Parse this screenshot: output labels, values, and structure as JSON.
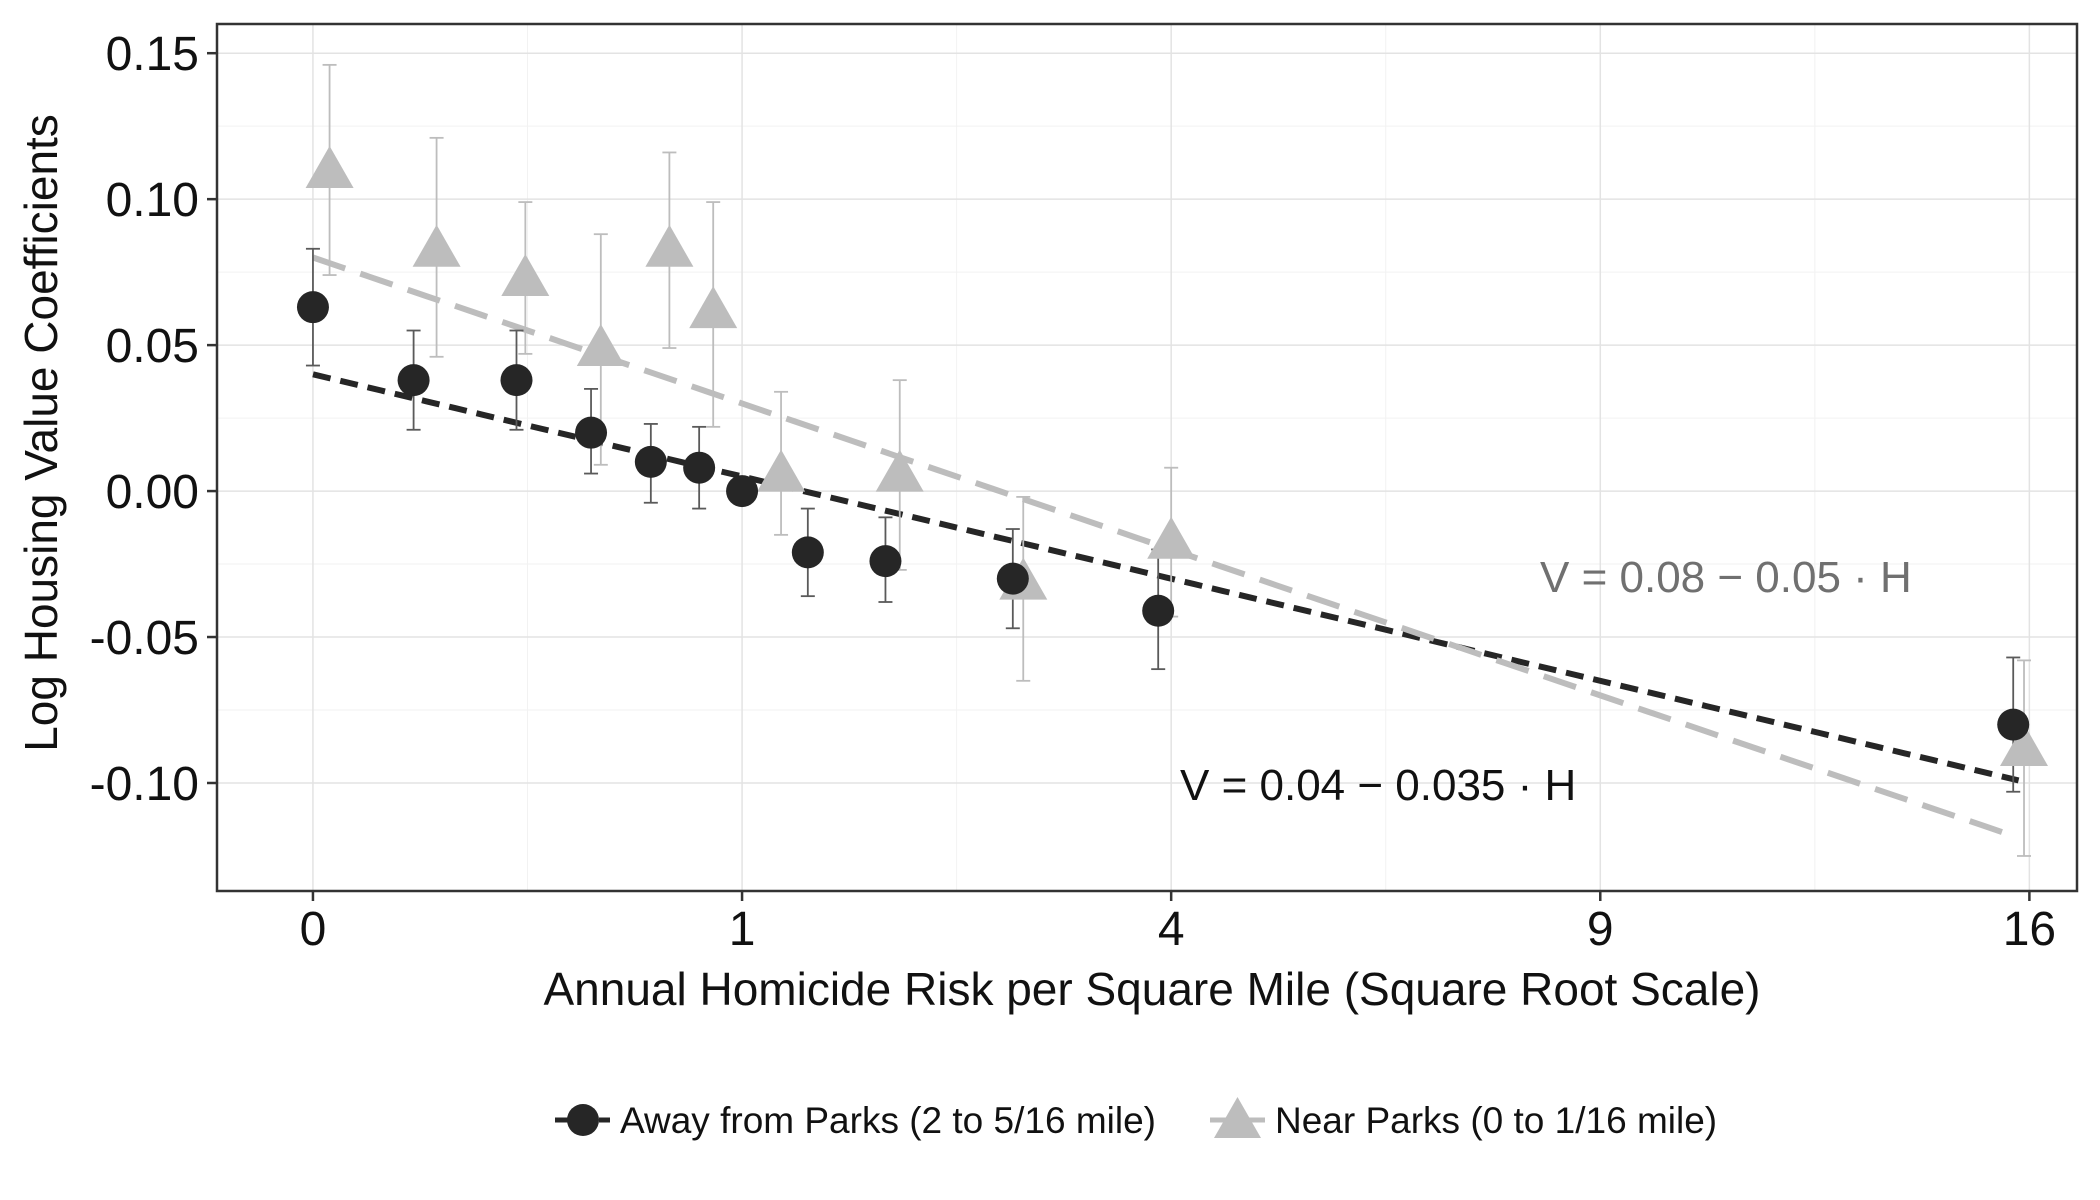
{
  "chart_data": {
    "type": "scatter",
    "title": "",
    "xlabel": "Annual Homicide Risk per Square Mile (Square Root Scale)",
    "ylabel": "Log Housing Value Coefficients",
    "x_scale": "sqrt",
    "xlim": [
      -0.05,
      16.9
    ],
    "ylim": [
      -0.137,
      0.16
    ],
    "x_ticks": [
      0,
      1,
      4,
      9,
      16
    ],
    "x_tick_labels": [
      "0",
      "1",
      "4",
      "9",
      "16"
    ],
    "y_ticks": [
      0.15,
      0.1,
      0.05,
      0.0,
      -0.05,
      -0.1
    ],
    "y_tick_labels": [
      "0.15",
      "0.10",
      "0.05",
      "0.00",
      "-0.05",
      "-0.10"
    ],
    "grid": true,
    "legend_position": "bottom",
    "series": [
      {
        "name": "Away from Parks (2 to 5/16 mile)",
        "marker": "circle",
        "color": "#262626",
        "points": [
          {
            "x": 0.0,
            "y": 0.063,
            "lo": 0.043,
            "hi": 0.083
          },
          {
            "x": 0.055,
            "y": 0.038,
            "lo": 0.021,
            "hi": 0.055
          },
          {
            "x": 0.225,
            "y": 0.038,
            "lo": 0.021,
            "hi": 0.055
          },
          {
            "x": 0.42,
            "y": 0.02,
            "lo": 0.006,
            "hi": 0.035
          },
          {
            "x": 0.62,
            "y": 0.01,
            "lo": -0.004,
            "hi": 0.023
          },
          {
            "x": 0.81,
            "y": 0.008,
            "lo": -0.006,
            "hi": 0.022
          },
          {
            "x": 1.0,
            "y": 0.0,
            "lo": 0.0,
            "hi": 0.0
          },
          {
            "x": 1.33,
            "y": -0.021,
            "lo": -0.036,
            "hi": -0.006
          },
          {
            "x": 1.78,
            "y": -0.024,
            "lo": -0.038,
            "hi": -0.009
          },
          {
            "x": 2.66,
            "y": -0.03,
            "lo": -0.047,
            "hi": -0.013
          },
          {
            "x": 3.88,
            "y": -0.041,
            "lo": -0.061,
            "hi": -0.02
          },
          {
            "x": 15.7,
            "y": -0.08,
            "lo": -0.103,
            "hi": -0.057
          }
        ],
        "fit": {
          "intercept": 0.04,
          "slope": -0.035,
          "x_from": 0.0,
          "x_to": 15.8,
          "equation": "V = 0.04 − 0.035 · H"
        }
      },
      {
        "name": "Near Parks (0 to 1/16 mile)",
        "marker": "triangle",
        "color": "#bdbdbd",
        "points": [
          {
            "x": 0.0015,
            "y": 0.11,
            "lo": 0.074,
            "hi": 0.146
          },
          {
            "x": 0.083,
            "y": 0.083,
            "lo": 0.046,
            "hi": 0.121
          },
          {
            "x": 0.245,
            "y": 0.073,
            "lo": 0.047,
            "hi": 0.099
          },
          {
            "x": 0.45,
            "y": 0.049,
            "lo": 0.009,
            "hi": 0.088
          },
          {
            "x": 0.69,
            "y": 0.083,
            "lo": 0.049,
            "hi": 0.116
          },
          {
            "x": 0.87,
            "y": 0.062,
            "lo": 0.022,
            "hi": 0.099
          },
          {
            "x": 1.19,
            "y": 0.006,
            "lo": -0.015,
            "hi": 0.034
          },
          {
            "x": 1.87,
            "y": 0.006,
            "lo": -0.027,
            "hi": 0.038
          },
          {
            "x": 2.74,
            "y": -0.031,
            "lo": -0.065,
            "hi": -0.002
          },
          {
            "x": 4.0,
            "y": -0.017,
            "lo": -0.043,
            "hi": 0.008
          },
          {
            "x": 15.9,
            "y": -0.088,
            "lo": -0.125,
            "hi": -0.058
          }
        ],
        "fit": {
          "intercept": 0.08,
          "slope": -0.05,
          "x_from": 0.0,
          "x_to": 15.7,
          "equation": "V = 0.08 − 0.05 · H"
        }
      }
    ]
  }
}
